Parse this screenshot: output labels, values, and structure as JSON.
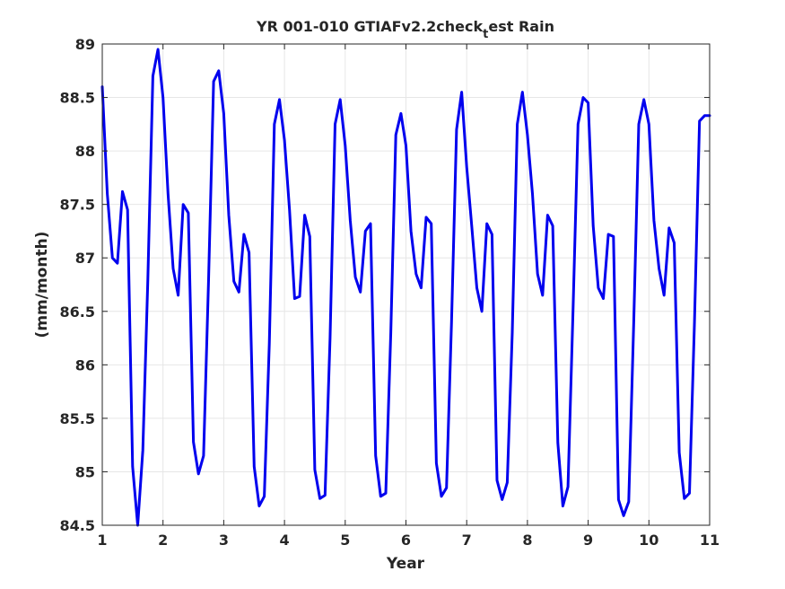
{
  "chart_data": {
    "type": "line",
    "title": "YR 001-010 GTIAFv2.2check",
    "title_subscript": "t",
    "title_suffix": "est Rain",
    "xlabel": "Year",
    "ylabel": "(mm/month)",
    "xlim": [
      1,
      11
    ],
    "ylim": [
      84.5,
      89
    ],
    "xticks": [
      1,
      2,
      3,
      4,
      5,
      6,
      7,
      8,
      9,
      10,
      11
    ],
    "yticks": [
      84.5,
      85,
      85.5,
      86,
      86.5,
      87,
      87.5,
      88,
      88.5,
      89
    ],
    "grid": true,
    "legend": false,
    "series": [
      {
        "color": "#0000ee",
        "x": [
          1.0,
          1.083,
          1.167,
          1.25,
          1.333,
          1.417,
          1.5,
          1.583,
          1.667,
          1.75,
          1.833,
          1.917,
          2.0,
          2.083,
          2.167,
          2.25,
          2.333,
          2.417,
          2.5,
          2.583,
          2.667,
          2.75,
          2.833,
          2.917,
          3.0,
          3.083,
          3.167,
          3.25,
          3.333,
          3.417,
          3.5,
          3.583,
          3.667,
          3.75,
          3.833,
          3.917,
          4.0,
          4.083,
          4.167,
          4.25,
          4.333,
          4.417,
          4.5,
          4.583,
          4.667,
          4.75,
          4.833,
          4.917,
          5.0,
          5.083,
          5.167,
          5.25,
          5.333,
          5.417,
          5.5,
          5.583,
          5.667,
          5.75,
          5.833,
          5.917,
          6.0,
          6.083,
          6.167,
          6.25,
          6.333,
          6.417,
          6.5,
          6.583,
          6.667,
          6.75,
          6.833,
          6.917,
          7.0,
          7.083,
          7.167,
          7.25,
          7.333,
          7.417,
          7.5,
          7.583,
          7.667,
          7.75,
          7.833,
          7.917,
          8.0,
          8.083,
          8.167,
          8.25,
          8.333,
          8.417,
          8.5,
          8.583,
          8.667,
          8.75,
          8.833,
          8.917,
          9.0,
          9.083,
          9.167,
          9.25,
          9.333,
          9.417,
          9.5,
          9.583,
          9.667,
          9.75,
          9.833,
          9.917,
          10.0,
          10.083,
          10.167,
          10.25,
          10.333,
          10.417,
          10.5,
          10.583,
          10.667,
          10.75,
          10.833,
          10.917,
          11.0
        ],
        "y": [
          88.6,
          87.6,
          87.0,
          86.95,
          87.62,
          87.45,
          85.05,
          84.5,
          85.2,
          86.8,
          88.7,
          88.95,
          88.5,
          87.6,
          86.9,
          86.65,
          87.5,
          87.42,
          85.28,
          84.98,
          85.15,
          86.8,
          88.65,
          88.75,
          88.35,
          87.4,
          86.78,
          86.68,
          87.22,
          87.05,
          85.05,
          84.68,
          84.77,
          86.2,
          88.25,
          88.48,
          88.1,
          87.45,
          86.62,
          86.64,
          87.4,
          87.2,
          85.02,
          84.75,
          84.78,
          86.25,
          88.25,
          88.48,
          88.05,
          87.35,
          86.82,
          86.68,
          87.25,
          87.32,
          85.15,
          84.77,
          84.8,
          86.3,
          88.15,
          88.35,
          88.05,
          87.25,
          86.85,
          86.72,
          87.38,
          87.32,
          85.08,
          84.77,
          84.85,
          86.4,
          88.2,
          88.55,
          87.85,
          87.3,
          86.72,
          86.5,
          87.32,
          87.22,
          84.92,
          84.74,
          84.9,
          86.3,
          88.25,
          88.55,
          88.15,
          87.6,
          86.85,
          86.65,
          87.4,
          87.3,
          85.27,
          84.68,
          84.86,
          86.5,
          88.25,
          88.5,
          88.45,
          87.3,
          86.72,
          86.62,
          87.22,
          87.2,
          84.74,
          84.59,
          84.72,
          86.4,
          88.25,
          88.48,
          88.25,
          87.35,
          86.9,
          86.65,
          87.28,
          87.14,
          85.18,
          84.75,
          84.8,
          86.4,
          88.28,
          88.33,
          88.33
        ]
      }
    ]
  }
}
